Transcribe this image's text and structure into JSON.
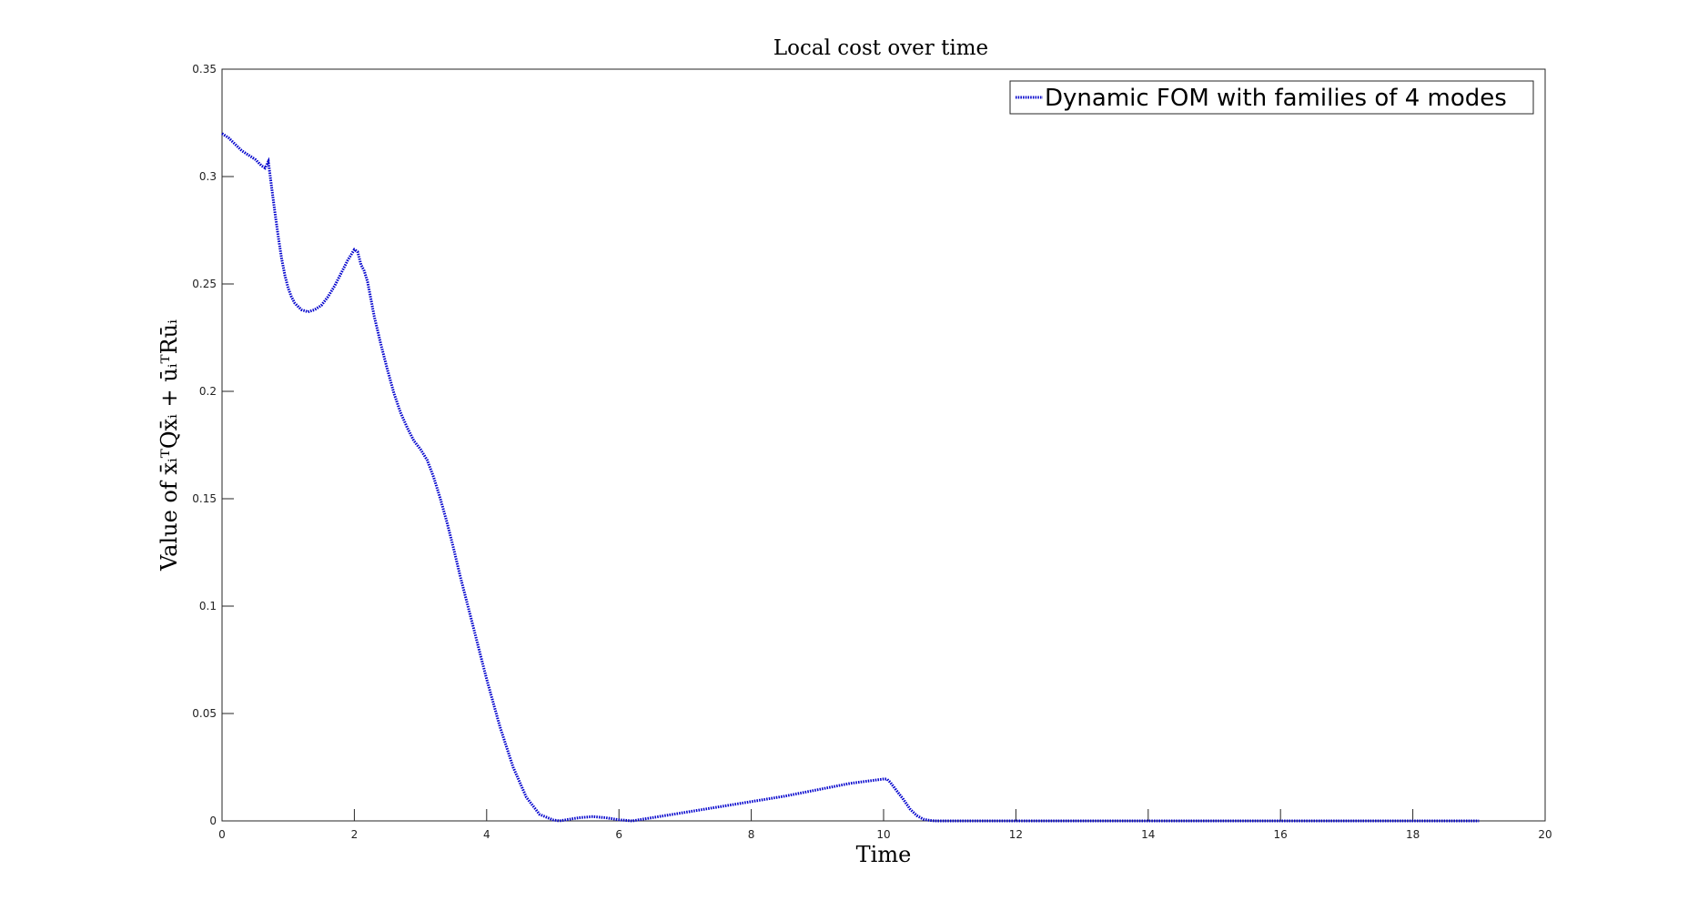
{
  "chart_data": {
    "type": "line",
    "title": "Local cost over time",
    "xlabel": "Time",
    "ylabel": "Value of x̄ᵢᵀQx̄ᵢ + ūᵢᵀRūᵢ",
    "xlim": [
      0,
      20
    ],
    "ylim": [
      0,
      0.35
    ],
    "xticks": [
      "0",
      "2",
      "4",
      "6",
      "8",
      "10",
      "12",
      "14",
      "16",
      "18",
      "20"
    ],
    "yticks": [
      "0",
      "0.05",
      "0.1",
      "0.15",
      "0.2",
      "0.25",
      "0.3",
      "0.35"
    ],
    "grid": false,
    "legend_position": "top-right",
    "series": [
      {
        "name": "Dynamic FOM with families of 4 modes",
        "color": "#0000cc",
        "style": "dotted",
        "x": [
          0,
          0.1,
          0.2,
          0.3,
          0.4,
          0.5,
          0.6,
          0.65,
          0.7,
          0.75,
          0.8,
          0.85,
          0.9,
          0.95,
          1.0,
          1.05,
          1.1,
          1.2,
          1.3,
          1.4,
          1.5,
          1.6,
          1.7,
          1.8,
          1.9,
          2.0,
          2.05,
          2.1,
          2.15,
          2.2,
          2.25,
          2.3,
          2.4,
          2.5,
          2.6,
          2.7,
          2.8,
          2.9,
          3.0,
          3.1,
          3.2,
          3.3,
          3.4,
          3.5,
          3.6,
          3.7,
          3.8,
          3.9,
          4.0,
          4.2,
          4.4,
          4.6,
          4.8,
          5.0,
          5.1,
          5.2,
          5.3,
          5.4,
          5.6,
          5.8,
          6.0,
          6.2,
          6.5,
          7.0,
          7.5,
          8.0,
          8.5,
          9.0,
          9.5,
          10.0,
          10.05,
          10.1,
          10.2,
          10.3,
          10.4,
          10.5,
          10.6,
          10.7,
          10.8,
          11.0,
          12.0,
          13.0,
          14.0,
          15.0,
          16.0,
          17.0,
          18.0,
          19.0
        ],
        "y": [
          0.32,
          0.318,
          0.315,
          0.312,
          0.31,
          0.308,
          0.305,
          0.304,
          0.307,
          0.295,
          0.283,
          0.272,
          0.262,
          0.254,
          0.248,
          0.244,
          0.241,
          0.238,
          0.237,
          0.238,
          0.24,
          0.244,
          0.249,
          0.255,
          0.261,
          0.266,
          0.265,
          0.259,
          0.256,
          0.251,
          0.243,
          0.235,
          0.222,
          0.21,
          0.199,
          0.19,
          0.183,
          0.177,
          0.173,
          0.168,
          0.16,
          0.15,
          0.139,
          0.127,
          0.114,
          0.102,
          0.09,
          0.078,
          0.066,
          0.044,
          0.025,
          0.011,
          0.003,
          0.0005,
          0.0,
          0.0005,
          0.001,
          0.0015,
          0.002,
          0.0015,
          0.0005,
          0.0,
          0.0015,
          0.004,
          0.0065,
          0.009,
          0.0115,
          0.0145,
          0.0175,
          0.0195,
          0.0195,
          0.018,
          0.014,
          0.01,
          0.0055,
          0.0025,
          0.0008,
          0.0002,
          0.0,
          0.0,
          0.0,
          0.0,
          0.0,
          0.0,
          0.0,
          0.0,
          0.0,
          0.0
        ]
      }
    ]
  }
}
